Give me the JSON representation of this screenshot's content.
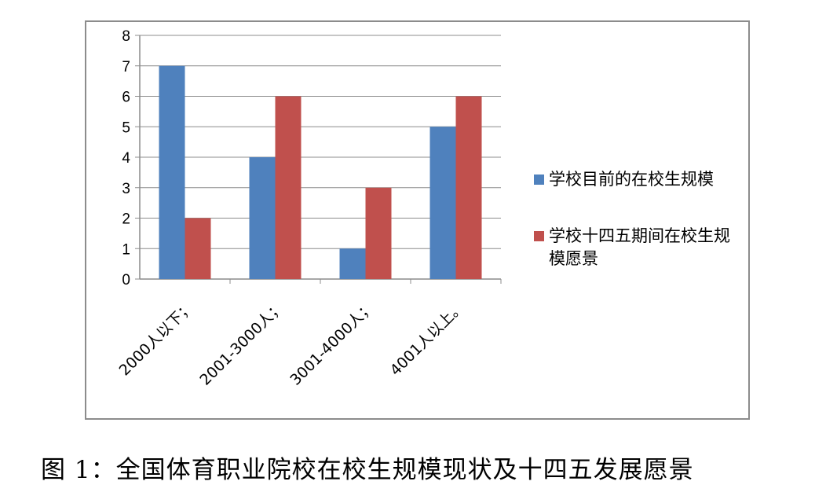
{
  "chart_data": {
    "type": "bar",
    "categories": [
      "2000人以下；",
      "2001-3000人；",
      "3001-4000人；",
      "4001人以上。"
    ],
    "series": [
      {
        "name": "学校目前的在校生规模",
        "values": [
          7,
          4,
          1,
          5
        ],
        "color": "#4f81bd"
      },
      {
        "name": "学校十四五期间在校生规模愿景",
        "values": [
          2,
          6,
          3,
          6
        ],
        "color": "#c0504d"
      }
    ],
    "yticks": [
      "0",
      "1",
      "2",
      "3",
      "4",
      "5",
      "6",
      "7",
      "8"
    ],
    "ylim": [
      0,
      8
    ],
    "grid": true,
    "legend": "right"
  },
  "caption": "图 1：全国体育职业院校在校生规模现状及十四五发展愿景"
}
